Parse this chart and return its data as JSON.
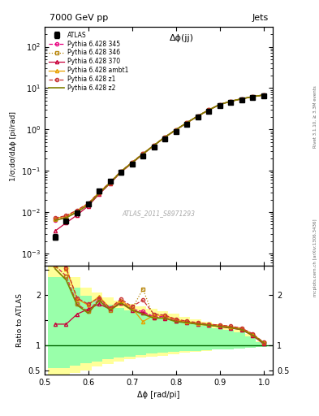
{
  "title_top": "7000 GeV pp",
  "title_right": "Jets",
  "plot_title": "Δϕ(jj)",
  "xlabel": "Δϕ [rad/pi]",
  "ylabel_main": "1/σ;dσ/dΔϕ [pi/rad]",
  "ylabel_ratio": "Ratio to ATLAS",
  "watermark": "ATLAS_2011_S8971293",
  "rivet_label": "Rivet 3.1.10, ≥ 3.3M events",
  "mcplots_label": "mcplots.cern.ch [arXiv:1306.3436]",
  "xlim": [
    0.5,
    1.02
  ],
  "ylim_main": [
    0.0005,
    300.0
  ],
  "ylim_ratio": [
    0.42,
    2.58
  ],
  "atlas_x": [
    0.524,
    0.549,
    0.574,
    0.599,
    0.624,
    0.649,
    0.674,
    0.699,
    0.724,
    0.749,
    0.774,
    0.799,
    0.824,
    0.849,
    0.874,
    0.899,
    0.924,
    0.949,
    0.974,
    0.999
  ],
  "atlas_y": [
    0.0025,
    0.006,
    0.0095,
    0.0155,
    0.032,
    0.055,
    0.09,
    0.145,
    0.23,
    0.38,
    0.6,
    0.9,
    1.35,
    2.0,
    2.8,
    3.8,
    4.5,
    5.2,
    5.8,
    6.5
  ],
  "atlas_yerr": [
    0.0004,
    0.0008,
    0.0012,
    0.0018,
    0.0035,
    0.005,
    0.008,
    0.012,
    0.018,
    0.028,
    0.045,
    0.06,
    0.09,
    0.13,
    0.18,
    0.25,
    0.3,
    0.35,
    0.4,
    0.45
  ],
  "pythia345_y": [
    0.0065,
    0.0075,
    0.01,
    0.015,
    0.028,
    0.05,
    0.095,
    0.155,
    0.255,
    0.41,
    0.65,
    0.98,
    1.45,
    2.1,
    2.95,
    4.0,
    4.8,
    5.5,
    6.2,
    6.8
  ],
  "pythia346_y": [
    0.0068,
    0.0078,
    0.0105,
    0.0155,
    0.029,
    0.051,
    0.096,
    0.158,
    0.257,
    0.412,
    0.65,
    0.98,
    1.46,
    2.12,
    2.96,
    4.01,
    4.81,
    5.52,
    6.22,
    6.82
  ],
  "pythia370_y": [
    0.0035,
    0.0055,
    0.0085,
    0.014,
    0.027,
    0.049,
    0.092,
    0.152,
    0.25,
    0.405,
    0.64,
    0.96,
    1.43,
    2.08,
    2.92,
    3.97,
    4.77,
    5.48,
    6.18,
    6.78
  ],
  "pythia_ambt1_y": [
    0.007,
    0.008,
    0.011,
    0.016,
    0.03,
    0.052,
    0.097,
    0.158,
    0.257,
    0.412,
    0.65,
    0.98,
    1.45,
    2.1,
    2.95,
    4.0,
    4.8,
    5.5,
    6.2,
    6.8
  ],
  "pythia_z1_y": [
    0.0072,
    0.0082,
    0.0112,
    0.0162,
    0.0302,
    0.0522,
    0.0972,
    0.16,
    0.26,
    0.415,
    0.655,
    0.985,
    1.46,
    2.12,
    2.97,
    4.02,
    4.82,
    5.52,
    6.22,
    6.82
  ],
  "pythia_z2_y": [
    0.0063,
    0.0073,
    0.01,
    0.015,
    0.0285,
    0.0505,
    0.0955,
    0.156,
    0.255,
    0.41,
    0.648,
    0.978,
    1.45,
    2.1,
    2.95,
    4.0,
    4.8,
    5.5,
    6.2,
    6.8
  ],
  "color_345": "#e8007f",
  "color_346": "#b8860b",
  "color_370": "#c8003a",
  "color_ambt1": "#e8a000",
  "color_z1": "#c83232",
  "color_z2": "#808000",
  "band_x_edges": [
    0.507,
    0.532,
    0.557,
    0.582,
    0.607,
    0.632,
    0.657,
    0.682,
    0.707,
    0.732,
    0.757,
    0.782,
    0.807,
    0.832,
    0.857,
    0.882,
    0.907,
    0.932,
    0.957,
    0.982,
    1.007
  ],
  "band_yellow_lo": [
    0.42,
    0.42,
    0.45,
    0.5,
    0.58,
    0.63,
    0.68,
    0.72,
    0.75,
    0.77,
    0.79,
    0.82,
    0.85,
    0.87,
    0.89,
    0.91,
    0.93,
    0.94,
    0.95,
    0.97
  ],
  "band_yellow_hi": [
    2.58,
    2.58,
    2.35,
    2.15,
    2.05,
    1.95,
    1.88,
    1.83,
    1.78,
    1.73,
    1.68,
    1.63,
    1.57,
    1.52,
    1.47,
    1.42,
    1.36,
    1.3,
    1.22,
    1.08
  ],
  "band_green_lo": [
    0.55,
    0.55,
    0.6,
    0.64,
    0.68,
    0.72,
    0.75,
    0.78,
    0.81,
    0.83,
    0.85,
    0.87,
    0.88,
    0.89,
    0.9,
    0.91,
    0.92,
    0.93,
    0.95,
    0.97
  ],
  "band_green_hi": [
    2.35,
    2.35,
    2.15,
    1.98,
    1.88,
    1.8,
    1.74,
    1.69,
    1.64,
    1.59,
    1.54,
    1.5,
    1.46,
    1.42,
    1.38,
    1.34,
    1.3,
    1.25,
    1.18,
    1.06
  ],
  "ratio_345": [
    2.58,
    2.38,
    1.82,
    1.67,
    1.92,
    1.72,
    1.87,
    1.72,
    1.67,
    1.57,
    1.57,
    1.5,
    1.47,
    1.44,
    1.41,
    1.39,
    1.36,
    1.33,
    1.21,
    1.05
  ],
  "ratio_346": [
    2.58,
    2.38,
    1.82,
    1.67,
    1.9,
    1.7,
    1.85,
    1.72,
    2.12,
    1.55,
    1.55,
    1.49,
    1.46,
    1.43,
    1.41,
    1.38,
    1.35,
    1.32,
    1.21,
    1.05
  ],
  "ratio_370": [
    1.42,
    1.42,
    1.62,
    1.72,
    1.82,
    1.72,
    1.84,
    1.7,
    1.64,
    1.55,
    1.54,
    1.48,
    1.45,
    1.42,
    1.4,
    1.37,
    1.34,
    1.31,
    1.19,
    1.03
  ],
  "ratio_ambt1": [
    2.82,
    2.52,
    1.92,
    1.8,
    1.97,
    1.74,
    1.89,
    1.74,
    1.47,
    1.6,
    1.59,
    1.51,
    1.47,
    1.44,
    1.42,
    1.4,
    1.37,
    1.34,
    1.22,
    1.06
  ],
  "ratio_z1": [
    2.86,
    2.54,
    1.94,
    1.82,
    1.94,
    1.74,
    1.92,
    1.77,
    1.9,
    1.62,
    1.6,
    1.52,
    1.48,
    1.45,
    1.42,
    1.4,
    1.38,
    1.34,
    1.23,
    1.06
  ],
  "ratio_z2": [
    2.52,
    2.3,
    1.8,
    1.64,
    1.89,
    1.7,
    1.84,
    1.7,
    1.62,
    1.54,
    1.54,
    1.47,
    1.45,
    1.42,
    1.4,
    1.37,
    1.35,
    1.31,
    1.2,
    1.05
  ]
}
